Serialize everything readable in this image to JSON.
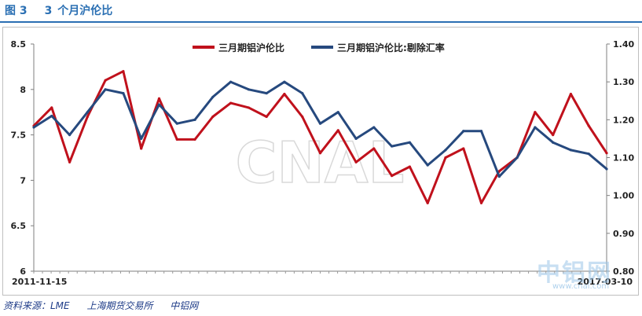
{
  "header": {
    "fig_label": "图 3",
    "fig_number": "3",
    "fig_title": "个月沪伦比"
  },
  "source": {
    "prefix": "资料来源：LME",
    "exchange": "上海期货交易所",
    "site": "中铝网"
  },
  "watermark": {
    "center": "CNAL",
    "brand": "中铝网",
    "url": "www.cnal.com"
  },
  "chart_data": {
    "type": "line",
    "x": [
      "2011-11-15",
      "2012-01",
      "2012-03",
      "2012-05",
      "2012-07",
      "2012-09",
      "2012-11",
      "2013-01",
      "2013-03",
      "2013-05",
      "2013-07",
      "2013-09",
      "2013-11",
      "2014-01",
      "2014-03",
      "2014-05",
      "2014-07",
      "2014-09",
      "2014-11",
      "2015-01",
      "2015-03",
      "2015-05",
      "2015-07",
      "2015-09",
      "2015-11",
      "2016-01",
      "2016-03",
      "2016-05",
      "2016-07",
      "2016-09",
      "2016-11",
      "2017-01",
      "2017-03-10"
    ],
    "x_tick_labels": [
      "2011-11-15",
      "2017-03-10"
    ],
    "series": [
      {
        "name": "三月期铝沪伦比",
        "axis": "left",
        "color": "#c0111c",
        "values": [
          7.6,
          7.8,
          7.2,
          7.7,
          8.1,
          8.2,
          7.35,
          7.9,
          7.45,
          7.45,
          7.7,
          7.85,
          7.8,
          7.7,
          7.95,
          7.7,
          7.3,
          7.55,
          7.2,
          7.35,
          7.05,
          7.15,
          6.75,
          7.25,
          7.35,
          6.75,
          7.1,
          7.25,
          7.75,
          7.5,
          7.95,
          7.6,
          7.3
        ]
      },
      {
        "name": "三月期铝沪伦比:剔除汇率",
        "axis": "right",
        "color": "#26497e",
        "values": [
          1.18,
          1.21,
          1.16,
          1.22,
          1.28,
          1.27,
          1.15,
          1.24,
          1.19,
          1.2,
          1.26,
          1.3,
          1.28,
          1.27,
          1.3,
          1.27,
          1.19,
          1.22,
          1.15,
          1.18,
          1.13,
          1.14,
          1.08,
          1.12,
          1.17,
          1.17,
          1.05,
          1.1,
          1.18,
          1.14,
          1.12,
          1.11,
          1.07
        ]
      }
    ],
    "y_left": {
      "lim": [
        6,
        8.5
      ],
      "ticks": [
        "6",
        "6.5",
        "7",
        "7.5",
        "8",
        "8.5"
      ]
    },
    "y_right": {
      "lim": [
        0.8,
        1.4
      ],
      "ticks": [
        "0.80",
        "0.90",
        "1.00",
        "1.10",
        "1.20",
        "1.30",
        "1.40"
      ]
    },
    "legend_position": "top-center",
    "grid": false
  }
}
